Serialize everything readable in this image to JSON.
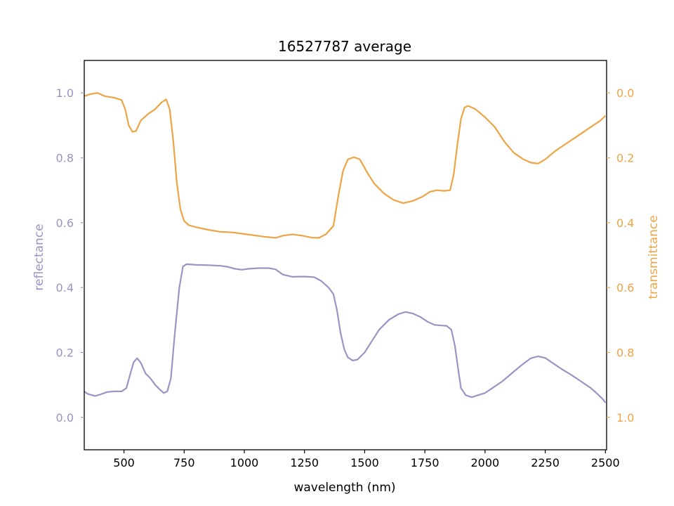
{
  "chart_data": {
    "type": "line",
    "title": "16527787 average",
    "xlabel": "wavelength (nm)",
    "ylabel_left": "reflectance",
    "ylabel_right": "transmittance",
    "xlim": [
      335,
      2505
    ],
    "ylim_left": [
      -0.1,
      1.1
    ],
    "ylim_right_inverted": [
      1.1,
      -0.1
    ],
    "x_ticks": [
      500,
      750,
      1000,
      1250,
      1500,
      1750,
      2000,
      2250,
      2500
    ],
    "y_ticks_left": [
      "0.0",
      "0.2",
      "0.4",
      "0.6",
      "0.8",
      "1.0"
    ],
    "y_ticks_right": [
      "0.0",
      "0.2",
      "0.4",
      "0.6",
      "0.8",
      "1.0"
    ],
    "colors": {
      "reflectance": "#9a94c5",
      "transmittance": "#eea445",
      "axes": "#000000"
    },
    "series": [
      {
        "name": "reflectance",
        "axis": "left",
        "points": [
          [
            335,
            0.08
          ],
          [
            350,
            0.072
          ],
          [
            380,
            0.066
          ],
          [
            400,
            0.07
          ],
          [
            430,
            0.078
          ],
          [
            460,
            0.08
          ],
          [
            490,
            0.08
          ],
          [
            510,
            0.09
          ],
          [
            525,
            0.13
          ],
          [
            540,
            0.17
          ],
          [
            555,
            0.182
          ],
          [
            570,
            0.168
          ],
          [
            590,
            0.135
          ],
          [
            610,
            0.12
          ],
          [
            630,
            0.1
          ],
          [
            650,
            0.085
          ],
          [
            665,
            0.075
          ],
          [
            680,
            0.08
          ],
          [
            695,
            0.12
          ],
          [
            710,
            0.25
          ],
          [
            730,
            0.4
          ],
          [
            745,
            0.465
          ],
          [
            760,
            0.472
          ],
          [
            800,
            0.47
          ],
          [
            850,
            0.469
          ],
          [
            900,
            0.467
          ],
          [
            930,
            0.464
          ],
          [
            960,
            0.458
          ],
          [
            990,
            0.455
          ],
          [
            1020,
            0.458
          ],
          [
            1060,
            0.46
          ],
          [
            1100,
            0.46
          ],
          [
            1130,
            0.456
          ],
          [
            1160,
            0.44
          ],
          [
            1200,
            0.433
          ],
          [
            1250,
            0.434
          ],
          [
            1290,
            0.432
          ],
          [
            1320,
            0.42
          ],
          [
            1350,
            0.4
          ],
          [
            1370,
            0.38
          ],
          [
            1385,
            0.33
          ],
          [
            1400,
            0.26
          ],
          [
            1415,
            0.21
          ],
          [
            1430,
            0.185
          ],
          [
            1450,
            0.175
          ],
          [
            1470,
            0.178
          ],
          [
            1500,
            0.2
          ],
          [
            1530,
            0.235
          ],
          [
            1560,
            0.27
          ],
          [
            1600,
            0.3
          ],
          [
            1640,
            0.318
          ],
          [
            1670,
            0.325
          ],
          [
            1700,
            0.32
          ],
          [
            1730,
            0.31
          ],
          [
            1760,
            0.295
          ],
          [
            1790,
            0.285
          ],
          [
            1820,
            0.283
          ],
          [
            1840,
            0.282
          ],
          [
            1860,
            0.27
          ],
          [
            1875,
            0.22
          ],
          [
            1890,
            0.14
          ],
          [
            1900,
            0.09
          ],
          [
            1920,
            0.068
          ],
          [
            1945,
            0.062
          ],
          [
            1970,
            0.068
          ],
          [
            2000,
            0.075
          ],
          [
            2030,
            0.09
          ],
          [
            2070,
            0.11
          ],
          [
            2110,
            0.135
          ],
          [
            2150,
            0.16
          ],
          [
            2190,
            0.182
          ],
          [
            2220,
            0.188
          ],
          [
            2250,
            0.183
          ],
          [
            2280,
            0.168
          ],
          [
            2320,
            0.148
          ],
          [
            2360,
            0.13
          ],
          [
            2400,
            0.11
          ],
          [
            2440,
            0.09
          ],
          [
            2470,
            0.07
          ],
          [
            2490,
            0.055
          ],
          [
            2500,
            0.045
          ]
        ]
      },
      {
        "name": "transmittance",
        "axis": "right",
        "points": [
          [
            335,
            0.01
          ],
          [
            360,
            0.004
          ],
          [
            390,
            0.0
          ],
          [
            420,
            0.01
          ],
          [
            460,
            0.015
          ],
          [
            490,
            0.022
          ],
          [
            505,
            0.05
          ],
          [
            520,
            0.1
          ],
          [
            535,
            0.12
          ],
          [
            550,
            0.118
          ],
          [
            570,
            0.085
          ],
          [
            600,
            0.065
          ],
          [
            630,
            0.05
          ],
          [
            655,
            0.03
          ],
          [
            675,
            0.02
          ],
          [
            690,
            0.05
          ],
          [
            705,
            0.15
          ],
          [
            720,
            0.28
          ],
          [
            735,
            0.36
          ],
          [
            750,
            0.395
          ],
          [
            770,
            0.408
          ],
          [
            800,
            0.414
          ],
          [
            850,
            0.422
          ],
          [
            900,
            0.428
          ],
          [
            950,
            0.43
          ],
          [
            990,
            0.434
          ],
          [
            1030,
            0.438
          ],
          [
            1080,
            0.443
          ],
          [
            1130,
            0.447
          ],
          [
            1160,
            0.44
          ],
          [
            1200,
            0.436
          ],
          [
            1240,
            0.44
          ],
          [
            1280,
            0.446
          ],
          [
            1310,
            0.447
          ],
          [
            1340,
            0.435
          ],
          [
            1370,
            0.41
          ],
          [
            1390,
            0.32
          ],
          [
            1410,
            0.24
          ],
          [
            1430,
            0.205
          ],
          [
            1455,
            0.198
          ],
          [
            1480,
            0.205
          ],
          [
            1510,
            0.245
          ],
          [
            1540,
            0.28
          ],
          [
            1580,
            0.31
          ],
          [
            1620,
            0.33
          ],
          [
            1660,
            0.34
          ],
          [
            1700,
            0.333
          ],
          [
            1740,
            0.32
          ],
          [
            1770,
            0.305
          ],
          [
            1800,
            0.3
          ],
          [
            1830,
            0.302
          ],
          [
            1855,
            0.3
          ],
          [
            1870,
            0.25
          ],
          [
            1885,
            0.16
          ],
          [
            1900,
            0.08
          ],
          [
            1915,
            0.045
          ],
          [
            1930,
            0.04
          ],
          [
            1960,
            0.05
          ],
          [
            2000,
            0.075
          ],
          [
            2040,
            0.105
          ],
          [
            2080,
            0.15
          ],
          [
            2120,
            0.185
          ],
          [
            2160,
            0.205
          ],
          [
            2190,
            0.215
          ],
          [
            2220,
            0.218
          ],
          [
            2250,
            0.205
          ],
          [
            2290,
            0.18
          ],
          [
            2330,
            0.16
          ],
          [
            2370,
            0.14
          ],
          [
            2410,
            0.12
          ],
          [
            2450,
            0.1
          ],
          [
            2480,
            0.085
          ],
          [
            2500,
            0.07
          ]
        ]
      }
    ]
  }
}
